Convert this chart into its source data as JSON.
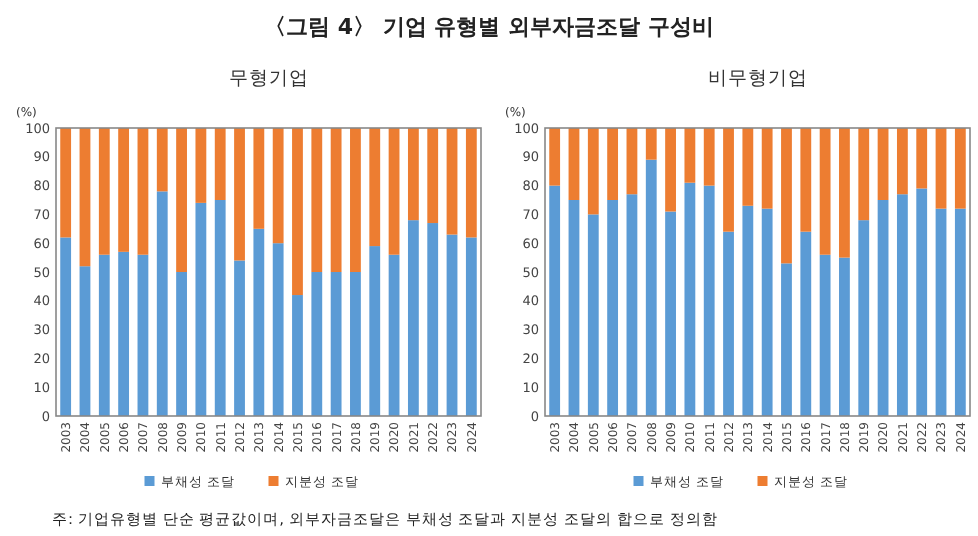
{
  "chart_data": [
    {
      "type": "bar",
      "stacked": true,
      "title": "〈그림 4〉 기업 유형별 외부자금조달 구성비",
      "subtitle": "무형기업",
      "ylabel": "(%)",
      "categories": [
        "2003",
        "2004",
        "2005",
        "2006",
        "2007",
        "2008",
        "2009",
        "2010",
        "2011",
        "2012",
        "2013",
        "2014",
        "2015",
        "2016",
        "2017",
        "2018",
        "2019",
        "2020",
        "2021",
        "2022",
        "2023",
        "2024"
      ],
      "series": [
        {
          "name": "부채성 조달",
          "color": "#5b9bd5",
          "values": [
            62,
            52,
            56,
            57,
            56,
            78,
            50,
            74,
            75,
            54,
            65,
            60,
            42,
            50,
            50,
            50,
            59,
            56,
            68,
            67,
            63,
            62
          ]
        },
        {
          "name": "지분성 조달",
          "color": "#ed7d31",
          "values": [
            38,
            48,
            44,
            43,
            44,
            22,
            50,
            26,
            25,
            46,
            35,
            40,
            58,
            50,
            50,
            50,
            41,
            44,
            32,
            33,
            37,
            38
          ]
        }
      ],
      "ylim": [
        0,
        100
      ],
      "yticks": [
        0,
        10,
        20,
        30,
        40,
        50,
        60,
        70,
        80,
        90,
        100
      ],
      "legend": "bottom",
      "grid": false,
      "annotations": [
        "주: 기업유형별 단순 평균값이며, 외부자금조달은 부채성 조달과 지분성 조달의 합으로 정의함"
      ]
    },
    {
      "type": "bar",
      "stacked": true,
      "subtitle": "비무형기업",
      "ylabel": "(%)",
      "categories": [
        "2003",
        "2004",
        "2005",
        "2006",
        "2007",
        "2008",
        "2009",
        "2010",
        "2011",
        "2012",
        "2013",
        "2014",
        "2015",
        "2016",
        "2017",
        "2018",
        "2019",
        "2020",
        "2021",
        "2022",
        "2023",
        "2024"
      ],
      "series": [
        {
          "name": "부채성 조달",
          "color": "#5b9bd5",
          "values": [
            80,
            75,
            70,
            75,
            77,
            89,
            71,
            81,
            80,
            64,
            73,
            72,
            53,
            64,
            56,
            55,
            68,
            75,
            77,
            79,
            72,
            72
          ]
        },
        {
          "name": "지분성 조달",
          "color": "#ed7d31",
          "values": [
            20,
            25,
            30,
            25,
            23,
            11,
            29,
            19,
            20,
            36,
            27,
            28,
            47,
            36,
            44,
            45,
            32,
            25,
            23,
            21,
            28,
            28
          ]
        }
      ],
      "ylim": [
        0,
        100
      ],
      "yticks": [
        0,
        10,
        20,
        30,
        40,
        50,
        60,
        70,
        80,
        90,
        100
      ],
      "legend": "bottom",
      "grid": false
    }
  ]
}
